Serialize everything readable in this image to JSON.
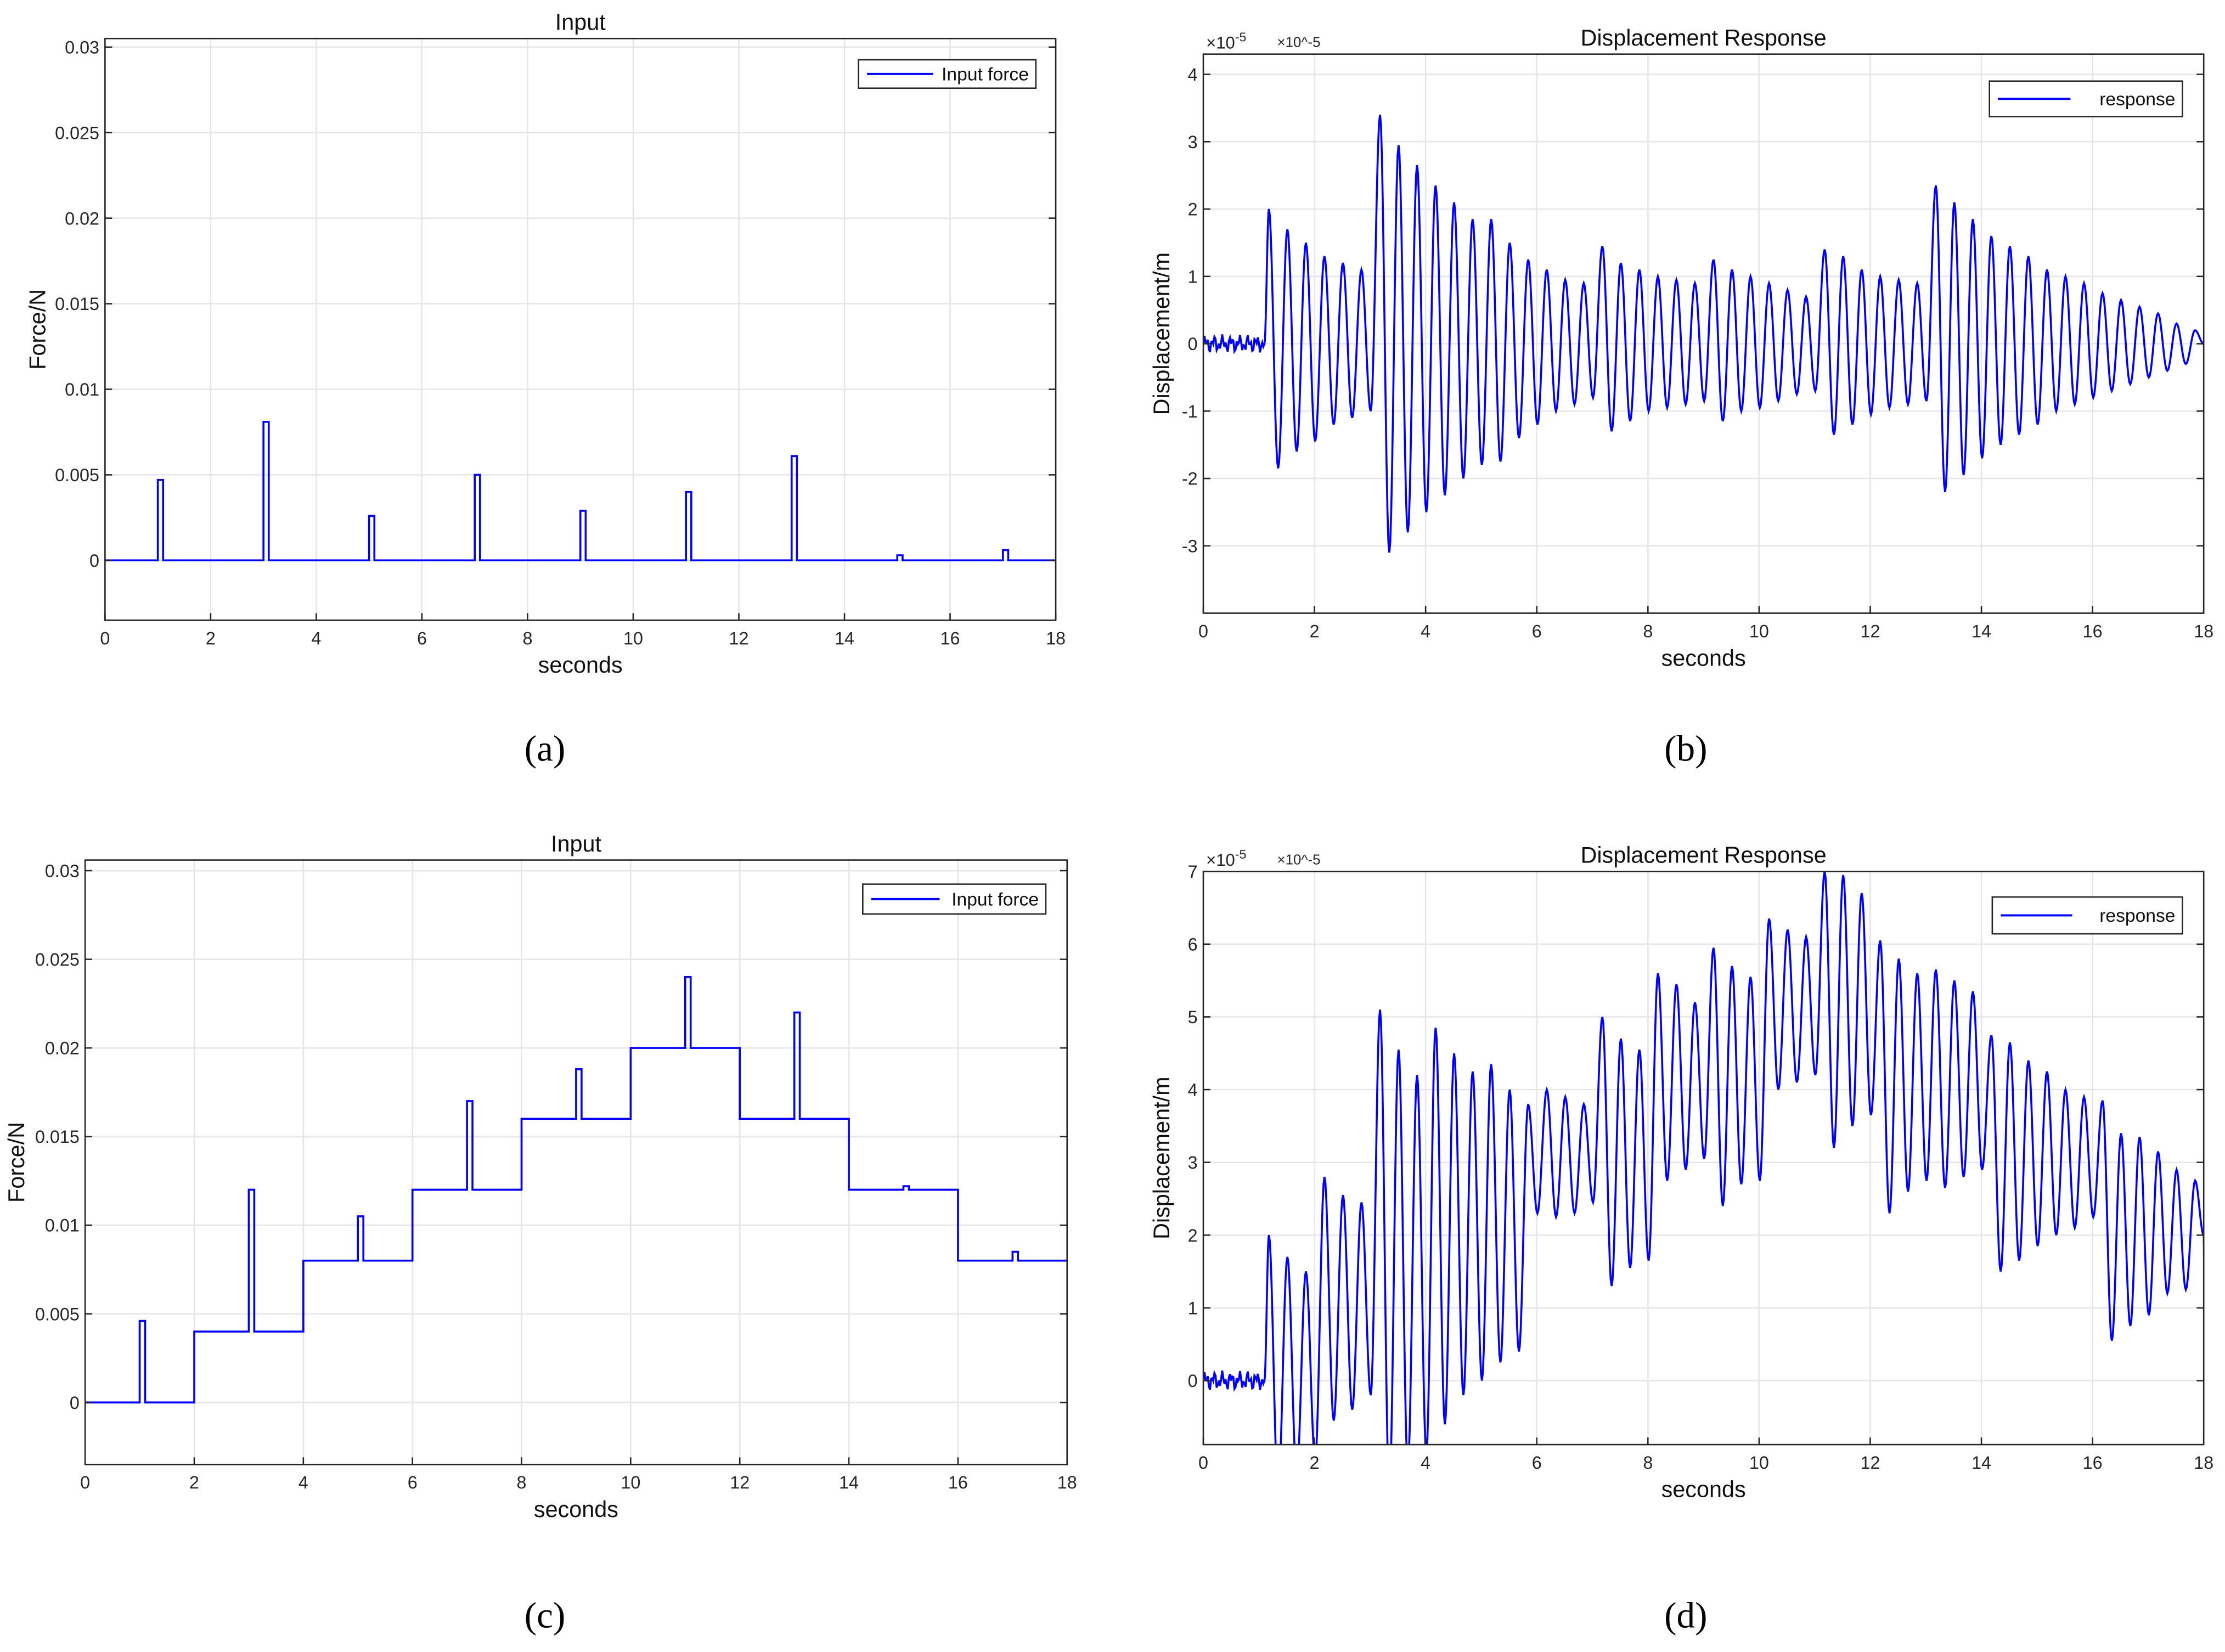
{
  "colors": {
    "line": "#0000ff",
    "grid": "#e6e6e6",
    "axis": "#262626"
  },
  "panel_labels": [
    "(a)",
    "(b)",
    "(c)",
    "(d)"
  ],
  "chart_data": [
    {
      "id": "a",
      "type": "line",
      "title": "Input",
      "xlabel": "seconds",
      "ylabel": "Force/N",
      "xlim": [
        0,
        18
      ],
      "ylim": [
        -0.0035,
        0.0305
      ],
      "xticks": [
        0,
        2,
        4,
        6,
        8,
        10,
        12,
        14,
        16,
        18
      ],
      "yticks": [
        0,
        0.005,
        0.01,
        0.015,
        0.02,
        0.025,
        0.03
      ],
      "ytick_labels": [
        "0",
        "0.005",
        "0.01",
        "0.015",
        "0.02",
        "0.025",
        "0.03"
      ],
      "grid": true,
      "legend": {
        "label": "Input force",
        "position": "top-right"
      },
      "signal": "step",
      "base": [
        [
          0,
          0
        ]
      ],
      "impulse_width": 0.1,
      "impulses": [
        [
          1,
          0.0047
        ],
        [
          3,
          0.0081
        ],
        [
          5,
          0.0026
        ],
        [
          7,
          0.005
        ],
        [
          9,
          0.0029
        ],
        [
          11,
          0.004
        ],
        [
          13,
          0.0061
        ],
        [
          15,
          0.0003
        ],
        [
          17,
          0.0006
        ]
      ]
    },
    {
      "id": "b",
      "type": "line",
      "title": "Displacement Response",
      "xlabel": "seconds",
      "ylabel": "Displacement/m",
      "y_multiplier": "×10^-5",
      "y_exp_base": "×10",
      "y_exp": "-5",
      "xlim": [
        0,
        18
      ],
      "ylim": [
        -4,
        4.3
      ],
      "xticks": [
        0,
        2,
        4,
        6,
        8,
        10,
        12,
        14,
        16,
        18
      ],
      "yticks": [
        -3,
        -2,
        -1,
        0,
        1,
        2,
        3,
        4
      ],
      "ytick_labels": [
        "-3",
        "-2",
        "-1",
        "0",
        "1",
        "2",
        "3",
        "4"
      ],
      "grid": true,
      "legend": {
        "label": "response",
        "position": "top-right"
      },
      "signal": "oscillation",
      "period": 0.333,
      "segments": [
        {
          "t0": 1.1,
          "peaks": [
            2.0,
            1.7,
            1.5,
            1.3,
            1.2,
            1.1
          ],
          "troughs": [
            -1.85,
            -1.6,
            -1.45,
            -1.2,
            -1.1,
            -1.0
          ]
        },
        {
          "t0": 3.1,
          "peaks": [
            3.4,
            2.95,
            2.65,
            2.35,
            2.1,
            1.85
          ],
          "troughs": [
            -3.1,
            -2.8,
            -2.5,
            -2.25,
            -2.0,
            -1.8
          ]
        },
        {
          "t0": 5.1,
          "peaks": [
            1.85,
            1.5,
            1.25,
            1.1,
            0.95,
            0.9
          ],
          "troughs": [
            -1.75,
            -1.4,
            -1.2,
            -1.0,
            -0.9,
            -0.8
          ]
        },
        {
          "t0": 7.1,
          "peaks": [
            1.45,
            1.2,
            1.1,
            1.0,
            0.95,
            0.9
          ],
          "troughs": [
            -1.3,
            -1.15,
            -1.0,
            -0.95,
            -0.9,
            -0.85
          ]
        },
        {
          "t0": 9.1,
          "peaks": [
            1.25,
            1.1,
            1.0,
            0.9,
            0.8,
            0.7
          ],
          "troughs": [
            -1.15,
            -1.0,
            -0.95,
            -0.85,
            -0.75,
            -0.7
          ]
        },
        {
          "t0": 11.1,
          "peaks": [
            1.4,
            1.3,
            1.1,
            1.0,
            0.95,
            0.9
          ],
          "troughs": [
            -1.35,
            -1.2,
            -1.05,
            -0.95,
            -0.9,
            -0.85
          ]
        },
        {
          "t0": 13.1,
          "peaks": [
            2.35,
            2.1,
            1.85,
            1.6,
            1.45,
            1.3
          ],
          "troughs": [
            -2.2,
            -1.95,
            -1.7,
            -1.5,
            -1.35,
            -1.2
          ]
        },
        {
          "t0": 15.1,
          "peaks": [
            1.1,
            1.0,
            0.9,
            0.75,
            0.65,
            0.55,
            0.45,
            0.3,
            0.2
          ],
          "troughs": [
            -1.0,
            -0.9,
            -0.8,
            -0.7,
            -0.6,
            -0.5,
            -0.4,
            -0.3,
            -0.1
          ]
        }
      ],
      "end_value": 0
    },
    {
      "id": "c",
      "type": "line",
      "title": "Input",
      "xlabel": "seconds",
      "ylabel": "Force/N",
      "xlim": [
        0,
        18
      ],
      "ylim": [
        -0.0035,
        0.0306
      ],
      "xticks": [
        0,
        2,
        4,
        6,
        8,
        10,
        12,
        14,
        16,
        18
      ],
      "yticks": [
        0,
        0.005,
        0.01,
        0.015,
        0.02,
        0.025,
        0.03
      ],
      "ytick_labels": [
        "0",
        "0.005",
        "0.01",
        "0.015",
        "0.02",
        "0.025",
        "0.03"
      ],
      "grid": true,
      "legend": {
        "label": "Input force",
        "position": "top-right"
      },
      "signal": "step",
      "base": [
        [
          0,
          0
        ],
        [
          2,
          0.004
        ],
        [
          4,
          0.008
        ],
        [
          6,
          0.012
        ],
        [
          8,
          0.016
        ],
        [
          10,
          0.02
        ],
        [
          12,
          0.016
        ],
        [
          14,
          0.012
        ],
        [
          16,
          0.008
        ]
      ],
      "impulse_width": 0.1,
      "impulses": [
        [
          1,
          0.0046
        ],
        [
          3,
          0.012
        ],
        [
          5,
          0.0105
        ],
        [
          7,
          0.017
        ],
        [
          9,
          0.0188
        ],
        [
          11,
          0.024
        ],
        [
          13,
          0.022
        ],
        [
          15,
          0.0122
        ],
        [
          17,
          0.0085
        ]
      ]
    },
    {
      "id": "d",
      "type": "line",
      "title": "Displacement Response",
      "xlabel": "seconds",
      "ylabel": "Displacement/m",
      "y_multiplier": "×10^-5",
      "y_exp_base": "×10",
      "y_exp": "-5",
      "xlim": [
        0,
        18
      ],
      "ylim": [
        -0.88,
        7
      ],
      "xticks": [
        0,
        2,
        4,
        6,
        8,
        10,
        12,
        14,
        16,
        18
      ],
      "yticks": [
        0,
        1,
        2,
        3,
        4,
        5,
        6,
        7
      ],
      "ytick_labels": [
        "0",
        "1",
        "2",
        "3",
        "4",
        "5",
        "6",
        "7"
      ],
      "grid": true,
      "legend": {
        "label": "response",
        "position": "top-right"
      },
      "signal": "oscillation",
      "period": 0.333,
      "segments": [
        {
          "t0": 1.1,
          "peaks": [
            2.0,
            1.7,
            1.5
          ],
          "troughs": [
            -1.5,
            -1.3,
            -1.1
          ]
        },
        {
          "t0": 2.1,
          "peaks": [
            2.8,
            2.55,
            2.45
          ],
          "troughs": [
            -0.55,
            -0.4,
            -0.2
          ]
        },
        {
          "t0": 3.1,
          "peaks": [
            5.1,
            4.55,
            4.2
          ],
          "troughs": [
            -1.5,
            -1.2,
            -1.0
          ]
        },
        {
          "t0": 4.1,
          "peaks": [
            4.85,
            4.5,
            4.25,
            4.35,
            4.0,
            3.8
          ],
          "troughs": [
            -0.6,
            -0.2,
            0.0,
            0.25,
            0.4,
            2.3
          ]
        },
        {
          "t0": 6.1,
          "peaks": [
            4.0,
            3.9,
            3.8
          ],
          "troughs": [
            2.25,
            2.3,
            2.45
          ]
        },
        {
          "t0": 7.1,
          "peaks": [
            5.0,
            4.7,
            4.55
          ],
          "troughs": [
            1.3,
            1.55,
            1.65
          ]
        },
        {
          "t0": 8.1,
          "peaks": [
            5.6,
            5.45,
            5.2
          ],
          "troughs": [
            2.75,
            2.9,
            3.05
          ]
        },
        {
          "t0": 9.1,
          "peaks": [
            5.95,
            5.7,
            5.55
          ],
          "troughs": [
            2.4,
            2.7,
            2.75
          ]
        },
        {
          "t0": 10.1,
          "peaks": [
            6.35,
            6.2,
            6.1
          ],
          "troughs": [
            4.0,
            4.1,
            4.2
          ]
        },
        {
          "t0": 11.1,
          "peaks": [
            7.0,
            6.95,
            6.7
          ],
          "troughs": [
            3.2,
            3.5,
            3.65
          ]
        },
        {
          "t0": 12.1,
          "peaks": [
            6.05,
            5.8,
            5.6
          ],
          "troughs": [
            2.3,
            2.6,
            2.75
          ]
        },
        {
          "t0": 13.1,
          "peaks": [
            5.65,
            5.5,
            5.35
          ],
          "troughs": [
            2.65,
            2.8,
            2.9
          ]
        },
        {
          "t0": 14.1,
          "peaks": [
            4.75,
            4.65,
            4.4
          ],
          "troughs": [
            1.5,
            1.65,
            1.85
          ]
        },
        {
          "t0": 15.1,
          "peaks": [
            4.25,
            4.0,
            3.9
          ],
          "troughs": [
            2.0,
            2.1,
            2.25
          ]
        },
        {
          "t0": 16.1,
          "peaks": [
            3.85,
            3.4,
            3.35,
            3.15,
            2.9,
            2.75,
            2.65
          ],
          "troughs": [
            0.55,
            0.75,
            0.9,
            1.2,
            1.25,
            1.35,
            1.9
          ]
        }
      ],
      "end_value": 2.0
    }
  ]
}
